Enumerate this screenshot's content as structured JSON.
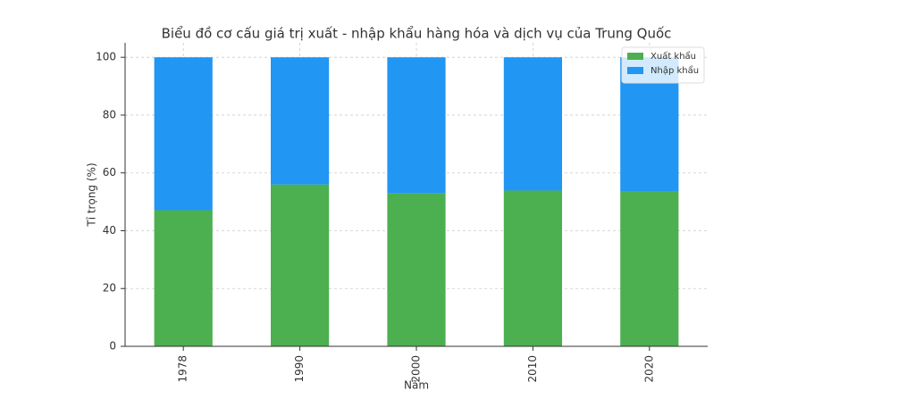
{
  "chart_data": {
    "type": "bar",
    "stacked": true,
    "title": "Biểu đồ cơ cấu giá trị xuất - nhập khẩu hàng hóa và dịch vụ của Trung Quốc",
    "x_label": "Năm",
    "y_label": "Tỉ trọng (%)",
    "categories": [
      "1978",
      "1990",
      "2000",
      "2010",
      "2020"
    ],
    "series": [
      {
        "name": "Xuất khẩu",
        "color": "#4caf50",
        "values": [
          47.1,
          56.0,
          52.9,
          53.9,
          53.6
        ]
      },
      {
        "name": "Nhập khẩu",
        "color": "#2196f3",
        "values": [
          52.9,
          44.0,
          47.1,
          46.1,
          46.4
        ]
      }
    ],
    "ylim": [
      0,
      105
    ],
    "yticks": [
      0,
      20,
      40,
      60,
      80,
      100
    ],
    "grid": true,
    "legend": "upper right"
  }
}
